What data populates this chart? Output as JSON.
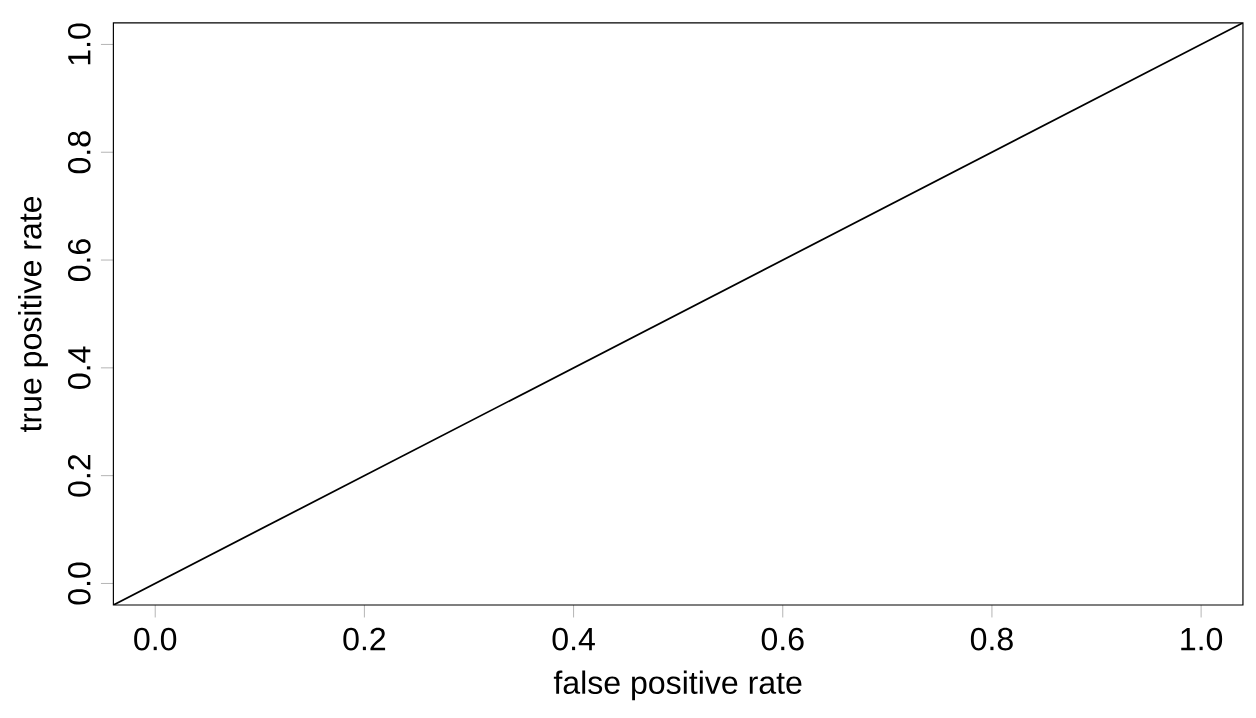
{
  "chart_data": {
    "type": "line",
    "xlabel": "false positive rate",
    "ylabel": "true positive rate",
    "x": [
      -0.04,
      1.04
    ],
    "series": [
      {
        "color": "#000000",
        "values": [
          -0.04,
          1.04
        ]
      }
    ],
    "xlim": [
      -0.04,
      1.04
    ],
    "ylim": [
      -0.04,
      1.04
    ],
    "xticks": [
      {
        "value": 0,
        "label": "0.0"
      },
      {
        "value": 0.2,
        "label": "0.2"
      },
      {
        "value": 0.4,
        "label": "0.4"
      },
      {
        "value": 0.6,
        "label": "0.6"
      },
      {
        "value": 0.8,
        "label": "0.8"
      },
      {
        "value": 1,
        "label": "1.0"
      }
    ],
    "yticks": [
      {
        "value": 0,
        "label": "0.0"
      },
      {
        "value": 0.2,
        "label": "0.2"
      },
      {
        "value": 0.4,
        "label": "0.4"
      },
      {
        "value": 0.6,
        "label": "0.6"
      },
      {
        "value": 0.8,
        "label": "0.8"
      },
      {
        "value": 1,
        "label": "1.0"
      }
    ],
    "grid": false,
    "marker": "none",
    "line_style": "solid"
  }
}
